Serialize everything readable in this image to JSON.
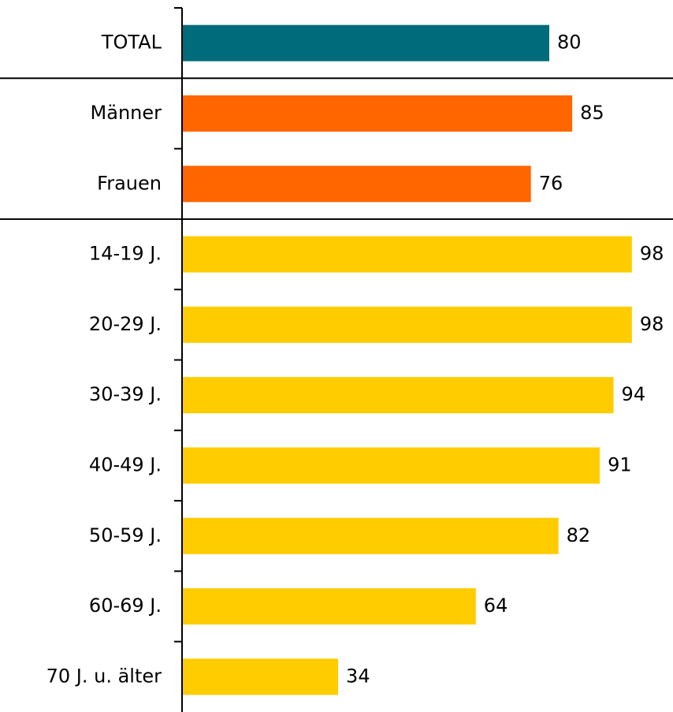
{
  "chart_data": {
    "type": "bar",
    "orientation": "horizontal",
    "categories": [
      "TOTAL",
      "Männer",
      "Frauen",
      "14-19 J.",
      "20-29 J.",
      "30-39 J.",
      "40-49 J.",
      "50-59 J.",
      "60-69 J.",
      "70 J. u. älter"
    ],
    "values": [
      80,
      85,
      76,
      98,
      98,
      94,
      91,
      82,
      64,
      34
    ],
    "colors": [
      "#006b7a",
      "#ff6600",
      "#ff6600",
      "#ffcc00",
      "#ffcc00",
      "#ffcc00",
      "#ffcc00",
      "#ffcc00",
      "#ffcc00",
      "#ffcc00"
    ],
    "xlim": [
      0,
      100
    ]
  }
}
